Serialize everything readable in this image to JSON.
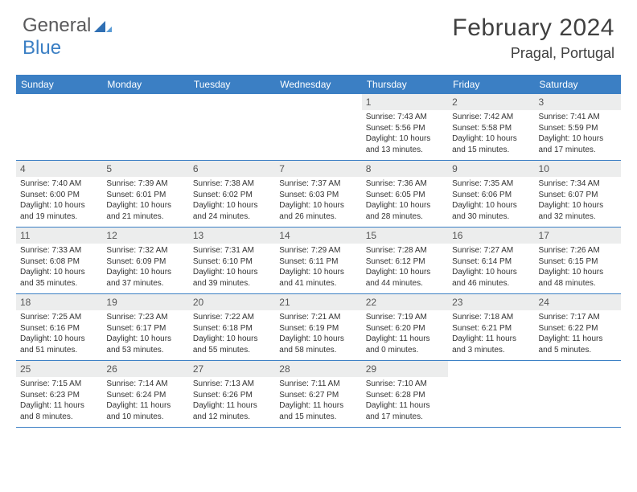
{
  "logo": {
    "word1": "General",
    "word2": "Blue"
  },
  "title": "February 2024",
  "location": "Pragal, Portugal",
  "colors": {
    "header_bar": "#3b7fc4",
    "daynum_bg": "#eceded",
    "text": "#333333",
    "title_text": "#404040",
    "row_border": "#3b7fc4"
  },
  "weekdays": [
    "Sunday",
    "Monday",
    "Tuesday",
    "Wednesday",
    "Thursday",
    "Friday",
    "Saturday"
  ],
  "weeks": [
    [
      null,
      null,
      null,
      null,
      {
        "n": "1",
        "sunrise": "Sunrise: 7:43 AM",
        "sunset": "Sunset: 5:56 PM",
        "daylight": "Daylight: 10 hours and 13 minutes."
      },
      {
        "n": "2",
        "sunrise": "Sunrise: 7:42 AM",
        "sunset": "Sunset: 5:58 PM",
        "daylight": "Daylight: 10 hours and 15 minutes."
      },
      {
        "n": "3",
        "sunrise": "Sunrise: 7:41 AM",
        "sunset": "Sunset: 5:59 PM",
        "daylight": "Daylight: 10 hours and 17 minutes."
      }
    ],
    [
      {
        "n": "4",
        "sunrise": "Sunrise: 7:40 AM",
        "sunset": "Sunset: 6:00 PM",
        "daylight": "Daylight: 10 hours and 19 minutes."
      },
      {
        "n": "5",
        "sunrise": "Sunrise: 7:39 AM",
        "sunset": "Sunset: 6:01 PM",
        "daylight": "Daylight: 10 hours and 21 minutes."
      },
      {
        "n": "6",
        "sunrise": "Sunrise: 7:38 AM",
        "sunset": "Sunset: 6:02 PM",
        "daylight": "Daylight: 10 hours and 24 minutes."
      },
      {
        "n": "7",
        "sunrise": "Sunrise: 7:37 AM",
        "sunset": "Sunset: 6:03 PM",
        "daylight": "Daylight: 10 hours and 26 minutes."
      },
      {
        "n": "8",
        "sunrise": "Sunrise: 7:36 AM",
        "sunset": "Sunset: 6:05 PM",
        "daylight": "Daylight: 10 hours and 28 minutes."
      },
      {
        "n": "9",
        "sunrise": "Sunrise: 7:35 AM",
        "sunset": "Sunset: 6:06 PM",
        "daylight": "Daylight: 10 hours and 30 minutes."
      },
      {
        "n": "10",
        "sunrise": "Sunrise: 7:34 AM",
        "sunset": "Sunset: 6:07 PM",
        "daylight": "Daylight: 10 hours and 32 minutes."
      }
    ],
    [
      {
        "n": "11",
        "sunrise": "Sunrise: 7:33 AM",
        "sunset": "Sunset: 6:08 PM",
        "daylight": "Daylight: 10 hours and 35 minutes."
      },
      {
        "n": "12",
        "sunrise": "Sunrise: 7:32 AM",
        "sunset": "Sunset: 6:09 PM",
        "daylight": "Daylight: 10 hours and 37 minutes."
      },
      {
        "n": "13",
        "sunrise": "Sunrise: 7:31 AM",
        "sunset": "Sunset: 6:10 PM",
        "daylight": "Daylight: 10 hours and 39 minutes."
      },
      {
        "n": "14",
        "sunrise": "Sunrise: 7:29 AM",
        "sunset": "Sunset: 6:11 PM",
        "daylight": "Daylight: 10 hours and 41 minutes."
      },
      {
        "n": "15",
        "sunrise": "Sunrise: 7:28 AM",
        "sunset": "Sunset: 6:12 PM",
        "daylight": "Daylight: 10 hours and 44 minutes."
      },
      {
        "n": "16",
        "sunrise": "Sunrise: 7:27 AM",
        "sunset": "Sunset: 6:14 PM",
        "daylight": "Daylight: 10 hours and 46 minutes."
      },
      {
        "n": "17",
        "sunrise": "Sunrise: 7:26 AM",
        "sunset": "Sunset: 6:15 PM",
        "daylight": "Daylight: 10 hours and 48 minutes."
      }
    ],
    [
      {
        "n": "18",
        "sunrise": "Sunrise: 7:25 AM",
        "sunset": "Sunset: 6:16 PM",
        "daylight": "Daylight: 10 hours and 51 minutes."
      },
      {
        "n": "19",
        "sunrise": "Sunrise: 7:23 AM",
        "sunset": "Sunset: 6:17 PM",
        "daylight": "Daylight: 10 hours and 53 minutes."
      },
      {
        "n": "20",
        "sunrise": "Sunrise: 7:22 AM",
        "sunset": "Sunset: 6:18 PM",
        "daylight": "Daylight: 10 hours and 55 minutes."
      },
      {
        "n": "21",
        "sunrise": "Sunrise: 7:21 AM",
        "sunset": "Sunset: 6:19 PM",
        "daylight": "Daylight: 10 hours and 58 minutes."
      },
      {
        "n": "22",
        "sunrise": "Sunrise: 7:19 AM",
        "sunset": "Sunset: 6:20 PM",
        "daylight": "Daylight: 11 hours and 0 minutes."
      },
      {
        "n": "23",
        "sunrise": "Sunrise: 7:18 AM",
        "sunset": "Sunset: 6:21 PM",
        "daylight": "Daylight: 11 hours and 3 minutes."
      },
      {
        "n": "24",
        "sunrise": "Sunrise: 7:17 AM",
        "sunset": "Sunset: 6:22 PM",
        "daylight": "Daylight: 11 hours and 5 minutes."
      }
    ],
    [
      {
        "n": "25",
        "sunrise": "Sunrise: 7:15 AM",
        "sunset": "Sunset: 6:23 PM",
        "daylight": "Daylight: 11 hours and 8 minutes."
      },
      {
        "n": "26",
        "sunrise": "Sunrise: 7:14 AM",
        "sunset": "Sunset: 6:24 PM",
        "daylight": "Daylight: 11 hours and 10 minutes."
      },
      {
        "n": "27",
        "sunrise": "Sunrise: 7:13 AM",
        "sunset": "Sunset: 6:26 PM",
        "daylight": "Daylight: 11 hours and 12 minutes."
      },
      {
        "n": "28",
        "sunrise": "Sunrise: 7:11 AM",
        "sunset": "Sunset: 6:27 PM",
        "daylight": "Daylight: 11 hours and 15 minutes."
      },
      {
        "n": "29",
        "sunrise": "Sunrise: 7:10 AM",
        "sunset": "Sunset: 6:28 PM",
        "daylight": "Daylight: 11 hours and 17 minutes."
      },
      null,
      null
    ]
  ]
}
